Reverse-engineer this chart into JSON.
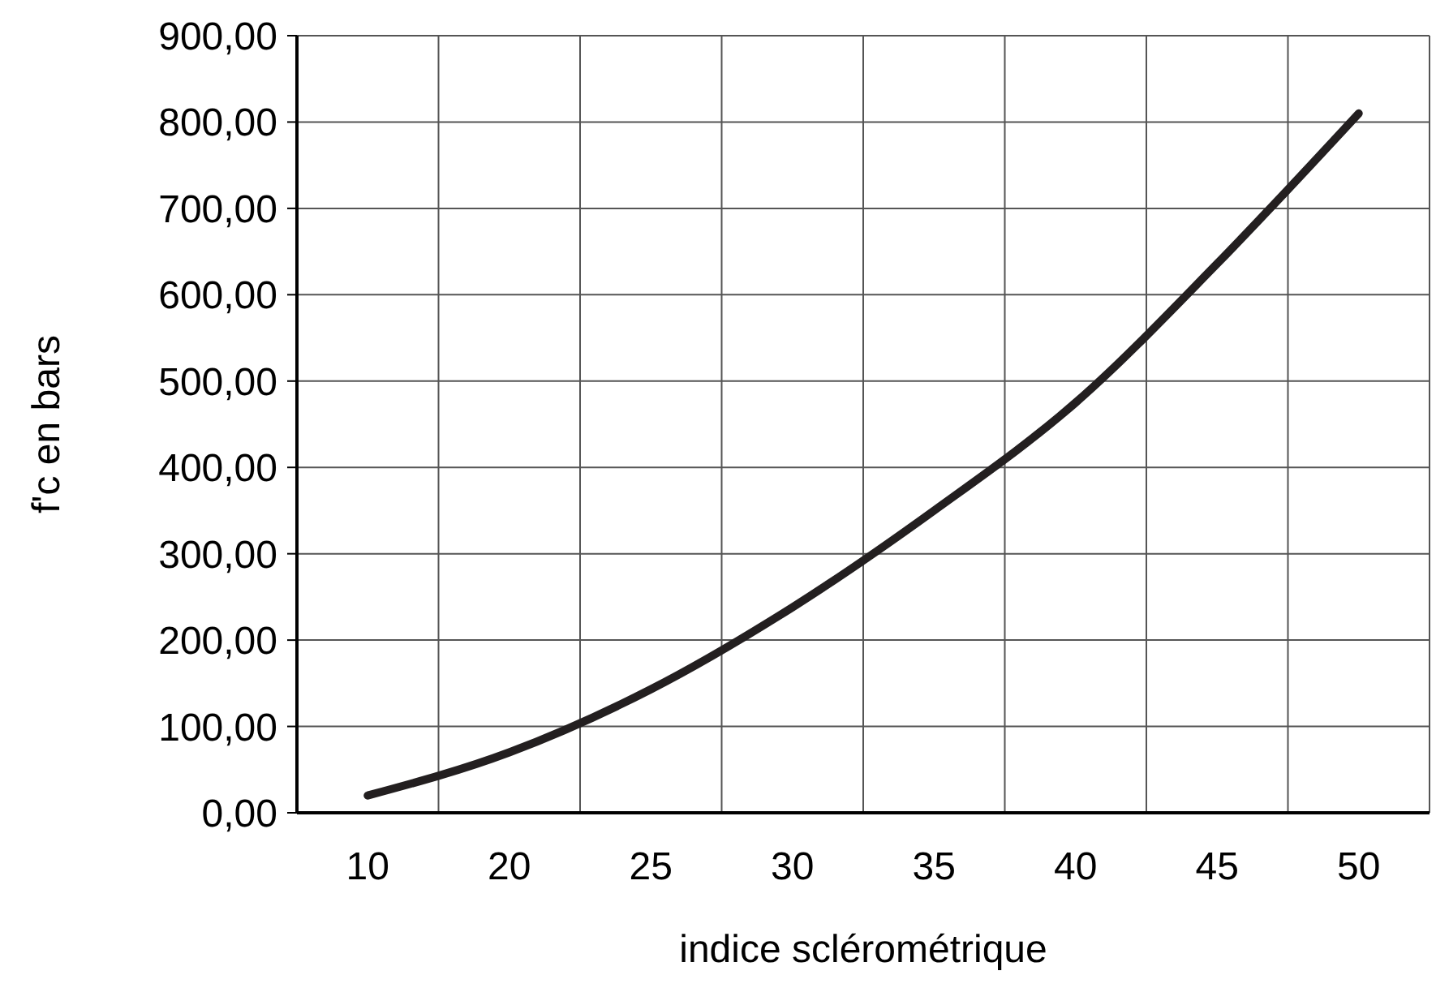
{
  "chart_data": {
    "type": "line",
    "xlabel": "indice sclérométrique",
    "ylabel": "f'c en bars",
    "categories": [
      "10",
      "20",
      "25",
      "30",
      "35",
      "40",
      "45",
      "50"
    ],
    "series": [
      {
        "color": "#231f20",
        "values": [
          20,
          70,
          143,
          238,
          350,
          475,
          636,
          810
        ]
      }
    ],
    "ylim": [
      0,
      900
    ],
    "yticks": [
      {
        "value": 0,
        "label": "0,00"
      },
      {
        "value": 100,
        "label": "100,00"
      },
      {
        "value": 200,
        "label": "200,00"
      },
      {
        "value": 300,
        "label": "300,00"
      },
      {
        "value": 400,
        "label": "400,00"
      },
      {
        "value": 500,
        "label": "500,00"
      },
      {
        "value": 600,
        "label": "600,00"
      },
      {
        "value": 700,
        "label": "700,00"
      },
      {
        "value": 800,
        "label": "800,00"
      },
      {
        "value": 900,
        "label": "900,00"
      }
    ],
    "grid": true,
    "marker": "none",
    "line_style": "solid"
  }
}
